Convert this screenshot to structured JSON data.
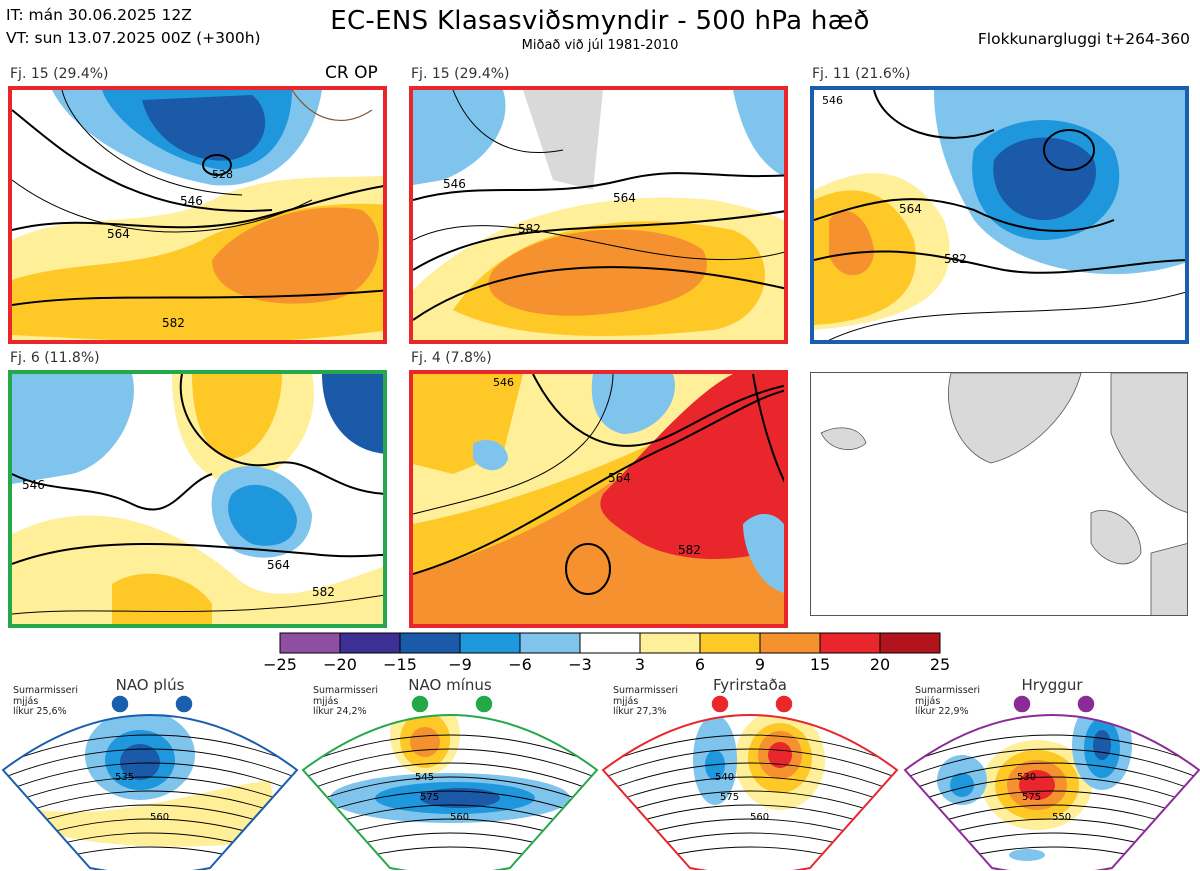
{
  "header": {
    "it": "IT: mán 30.06.2025 12Z",
    "vt": "VT: sun 13.07.2025 00Z  (+300h)",
    "title": "EC-ENS Klasasviðsmyndir - 500 hPa hæð",
    "subtitle": "Miðað við júl 1981-2010",
    "window": "Flokkunargluggi t+264-360",
    "cr_op": "CR OP"
  },
  "clusters": [
    {
      "label": "Fj. 15 (29.4%)",
      "border": "#e8262b",
      "contours": [
        "546",
        "564",
        "582",
        "528"
      ]
    },
    {
      "label": "Fj. 15 (29.4%)",
      "border": "#e8262b",
      "contours": [
        "546",
        "564",
        "582"
      ]
    },
    {
      "label": "Fj. 11 (21.6%)",
      "border": "#1a5fad",
      "contours": [
        "546",
        "564",
        "582"
      ]
    },
    {
      "label": "Fj. 6 (11.8%)",
      "border": "#25a84a",
      "contours": [
        "546",
        "564",
        "582"
      ]
    },
    {
      "label": "Fj. 4 (7.8%)",
      "border": "#e8262b",
      "contours": [
        "564",
        "582",
        "546"
      ]
    }
  ],
  "colorbar": {
    "ticks": [
      "−25",
      "−20",
      "−15",
      "−9",
      "−6",
      "−3",
      "3",
      "6",
      "9",
      "15",
      "20",
      "25"
    ],
    "colors": [
      "#8e4fa3",
      "#3d2f93",
      "#1a5aa8",
      "#1f97dd",
      "#7fc4ec",
      "#ffffff",
      "#ffef99",
      "#fec827",
      "#f5922f",
      "#e8262b",
      "#b1141c"
    ]
  },
  "regimes": [
    {
      "name": "NAO plús",
      "season": "Sumarmisseri",
      "mean": "mjjás",
      "prob": "líkur 25,6%",
      "color": "#1a5fad",
      "labels": [
        "535",
        "560"
      ]
    },
    {
      "name": "NAO mínus",
      "season": "Sumarmisseri",
      "mean": "mjjás",
      "prob": "líkur 24,2%",
      "color": "#25a84a",
      "labels": [
        "545",
        "560",
        "575"
      ]
    },
    {
      "name": "Fyrirstaða",
      "season": "Sumarmisseri",
      "mean": "mjjás",
      "prob": "líkur 27,3%",
      "color": "#e8262b",
      "labels": [
        "540",
        "560",
        "575"
      ]
    },
    {
      "name": "Hryggur",
      "season": "Sumarmisseri",
      "mean": "mjjás",
      "prob": "líkur 22,9%",
      "color": "#8b2b96",
      "labels": [
        "530",
        "550",
        "575"
      ]
    }
  ]
}
